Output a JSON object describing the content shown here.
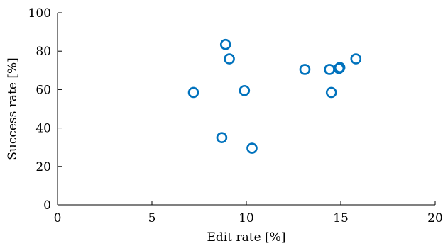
{
  "chart_data": {
    "type": "scatter",
    "title": "",
    "xlabel": "Edit rate [%]",
    "ylabel": "Success rate [%]",
    "xlim": [
      0,
      20
    ],
    "ylim": [
      0,
      100
    ],
    "xticks": [
      0,
      5,
      10,
      15,
      20
    ],
    "yticks": [
      0,
      20,
      40,
      60,
      80,
      100
    ],
    "grid": false,
    "marker": "circle",
    "marker_color": "#0072BD",
    "points": [
      {
        "x": 7.2,
        "y": 58.5
      },
      {
        "x": 8.7,
        "y": 35.0
      },
      {
        "x": 8.9,
        "y": 83.5
      },
      {
        "x": 9.1,
        "y": 76.0
      },
      {
        "x": 9.9,
        "y": 59.5
      },
      {
        "x": 10.3,
        "y": 29.5
      },
      {
        "x": 13.1,
        "y": 70.5
      },
      {
        "x": 14.4,
        "y": 70.5
      },
      {
        "x": 14.5,
        "y": 58.5
      },
      {
        "x": 14.9,
        "y": 71.0
      },
      {
        "x": 14.95,
        "y": 71.5
      },
      {
        "x": 15.8,
        "y": 76.0
      }
    ]
  }
}
